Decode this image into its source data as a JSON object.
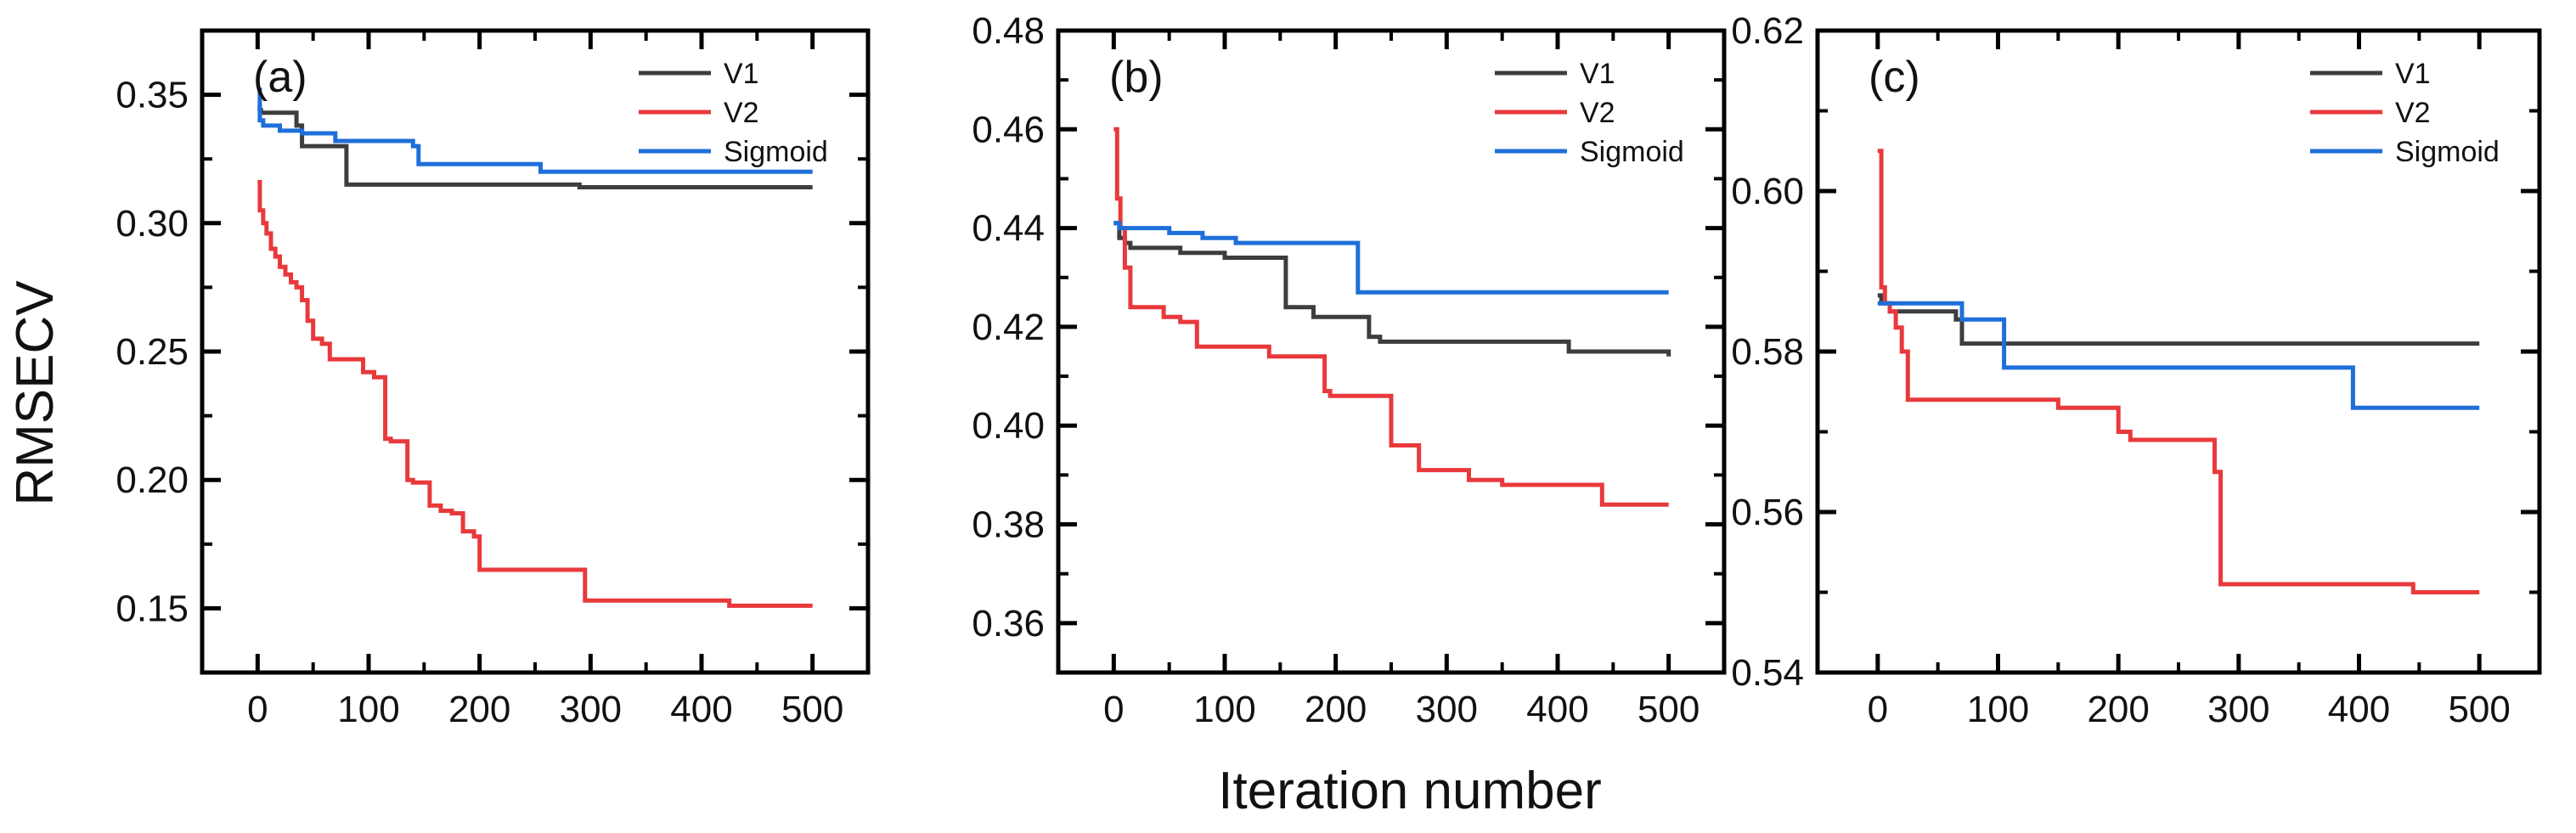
{
  "figure": {
    "ylabel": "RMSECV",
    "xlabel": "Iteration number"
  },
  "chart_data": [
    {
      "type": "line",
      "panel_label": "(a)",
      "xlabel": "Iteration number",
      "ylabel": "RMSECV",
      "xlim": [
        -50,
        550
      ],
      "ylim": [
        0.125,
        0.375
      ],
      "xticks": [
        0,
        100,
        200,
        300,
        400,
        500
      ],
      "xtick_labels": [
        "0",
        "100",
        "200",
        "300",
        "400",
        "500"
      ],
      "yticks": [
        0.15,
        0.2,
        0.25,
        0.3,
        0.35
      ],
      "ytick_labels": [
        "0.15",
        "0.20",
        "0.25",
        "0.30",
        "0.35"
      ],
      "legend_position": "top-right",
      "series": [
        {
          "name": "V1",
          "color": "#3d3d3d",
          "x": [
            0,
            2,
            3,
            10,
            35,
            40,
            80,
            280,
            290,
            500
          ],
          "y": [
            0.345,
            0.344,
            0.343,
            0.343,
            0.338,
            0.33,
            0.315,
            0.315,
            0.314,
            0.314
          ]
        },
        {
          "name": "V2",
          "color": "#e8393c",
          "x": [
            0,
            2,
            5,
            8,
            12,
            16,
            20,
            25,
            30,
            35,
            40,
            45,
            50,
            58,
            65,
            95,
            105,
            115,
            120,
            135,
            140,
            155,
            165,
            175,
            185,
            195,
            200,
            290,
            295,
            420,
            425,
            500
          ],
          "y": [
            0.316,
            0.305,
            0.3,
            0.296,
            0.29,
            0.287,
            0.283,
            0.28,
            0.277,
            0.275,
            0.27,
            0.262,
            0.255,
            0.253,
            0.247,
            0.242,
            0.24,
            0.216,
            0.215,
            0.2,
            0.199,
            0.19,
            0.188,
            0.187,
            0.18,
            0.178,
            0.165,
            0.165,
            0.153,
            0.153,
            0.151,
            0.151
          ]
        },
        {
          "name": "Sigmoid",
          "color": "#1e6fd9",
          "x": [
            0,
            2,
            5,
            20,
            40,
            70,
            100,
            140,
            145,
            250,
            255,
            500
          ],
          "y": [
            0.352,
            0.34,
            0.338,
            0.336,
            0.335,
            0.332,
            0.332,
            0.33,
            0.323,
            0.323,
            0.32,
            0.32
          ]
        }
      ]
    },
    {
      "type": "line",
      "panel_label": "(b)",
      "xlabel": "Iteration number",
      "ylabel": "",
      "xlim": [
        -50,
        550
      ],
      "ylim": [
        0.35,
        0.48
      ],
      "xticks": [
        0,
        100,
        200,
        300,
        400,
        500
      ],
      "xtick_labels": [
        "0",
        "100",
        "200",
        "300",
        "400",
        "500"
      ],
      "yticks": [
        0.36,
        0.38,
        0.4,
        0.42,
        0.44,
        0.46,
        0.48
      ],
      "ytick_labels": [
        "0.36",
        "0.38",
        "0.40",
        "0.42",
        "0.44",
        "0.46",
        "0.48"
      ],
      "legend_position": "top-right",
      "series": [
        {
          "name": "V1",
          "color": "#3d3d3d",
          "x": [
            0,
            5,
            10,
            15,
            20,
            60,
            70,
            100,
            120,
            155,
            160,
            180,
            190,
            230,
            240,
            400,
            410,
            500
          ],
          "y": [
            0.441,
            0.438,
            0.437,
            0.436,
            0.436,
            0.435,
            0.435,
            0.434,
            0.434,
            0.424,
            0.424,
            0.422,
            0.422,
            0.418,
            0.417,
            0.417,
            0.415,
            0.414
          ]
        },
        {
          "name": "V2",
          "color": "#e8393c",
          "x": [
            0,
            3,
            6,
            10,
            15,
            45,
            60,
            75,
            140,
            190,
            195,
            250,
            255,
            275,
            300,
            320,
            350,
            440,
            500
          ],
          "y": [
            0.46,
            0.446,
            0.44,
            0.432,
            0.424,
            0.422,
            0.421,
            0.416,
            0.414,
            0.407,
            0.406,
            0.396,
            0.396,
            0.391,
            0.391,
            0.389,
            0.388,
            0.384,
            0.384
          ]
        },
        {
          "name": "Sigmoid",
          "color": "#1e6fd9",
          "x": [
            0,
            5,
            20,
            50,
            80,
            110,
            215,
            220,
            250,
            260,
            500
          ],
          "y": [
            0.441,
            0.44,
            0.44,
            0.439,
            0.438,
            0.437,
            0.437,
            0.427,
            0.427,
            0.427,
            0.427
          ]
        }
      ]
    },
    {
      "type": "line",
      "panel_label": "(c)",
      "xlabel": "Iteration number",
      "ylabel": "",
      "xlim": [
        -50,
        550
      ],
      "ylim": [
        0.54,
        0.62
      ],
      "xticks": [
        0,
        100,
        200,
        300,
        400,
        500
      ],
      "xtick_labels": [
        "0",
        "100",
        "200",
        "300",
        "400",
        "500"
      ],
      "yticks": [
        0.54,
        0.56,
        0.58,
        0.6,
        0.62
      ],
      "ytick_labels": [
        "0.54",
        "0.56",
        "0.58",
        "0.60",
        "0.62"
      ],
      "legend_position": "top-right",
      "series": [
        {
          "name": "V1",
          "color": "#3d3d3d",
          "x": [
            0,
            3,
            10,
            60,
            65,
            70,
            500
          ],
          "y": [
            0.587,
            0.586,
            0.585,
            0.585,
            0.584,
            0.581,
            0.581
          ]
        },
        {
          "name": "V2",
          "color": "#e8393c",
          "x": [
            0,
            3,
            6,
            10,
            15,
            20,
            25,
            150,
            200,
            210,
            270,
            280,
            285,
            440,
            445,
            500
          ],
          "y": [
            0.605,
            0.588,
            0.586,
            0.585,
            0.583,
            0.58,
            0.574,
            0.573,
            0.57,
            0.569,
            0.569,
            0.565,
            0.551,
            0.551,
            0.55,
            0.55
          ]
        },
        {
          "name": "Sigmoid",
          "color": "#1e6fd9",
          "x": [
            0,
            5,
            60,
            70,
            100,
            105,
            390,
            395,
            500
          ],
          "y": [
            0.586,
            0.586,
            0.586,
            0.584,
            0.584,
            0.578,
            0.578,
            0.573,
            0.573
          ]
        }
      ]
    }
  ]
}
